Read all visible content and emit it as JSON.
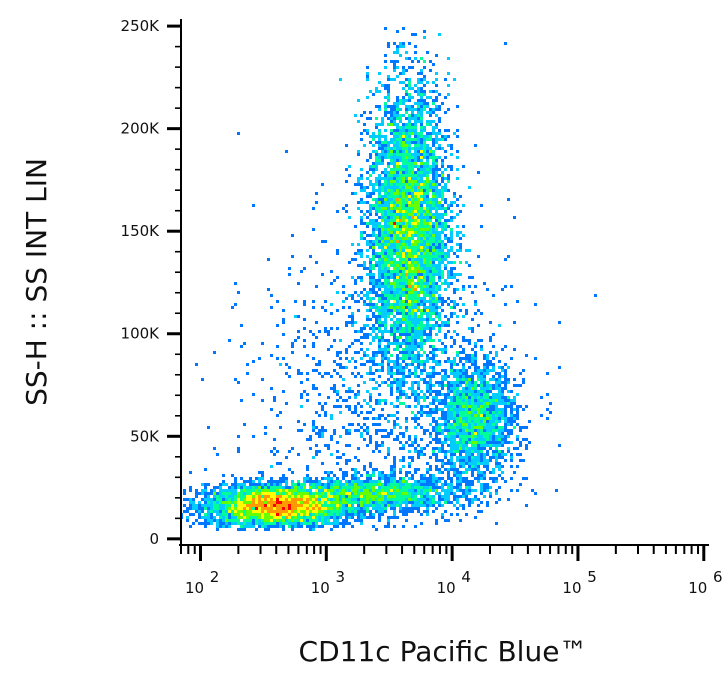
{
  "chart_data": {
    "type": "scatter",
    "title": "",
    "xlabel": "CD11c Pacific Blue™",
    "ylabel": "SS-H :: SS INT LIN",
    "x_scale": "log",
    "y_scale": "linear",
    "xlim": [
      70,
      1100000
    ],
    "ylim": [
      -3000,
      252000
    ],
    "x_ticks": [
      {
        "value": 100,
        "base": "10",
        "exp": "2"
      },
      {
        "value": 1000,
        "base": "10",
        "exp": "3"
      },
      {
        "value": 10000,
        "base": "10",
        "exp": "4"
      },
      {
        "value": 100000,
        "base": "10",
        "exp": "5"
      },
      {
        "value": 1000000,
        "base": "10",
        "exp": "6"
      }
    ],
    "y_ticks": [
      {
        "value": 0,
        "label": "0"
      },
      {
        "value": 50000,
        "label": "50K"
      },
      {
        "value": 100000,
        "label": "100K"
      },
      {
        "value": 150000,
        "label": "150K"
      },
      {
        "value": 200000,
        "label": "200K"
      },
      {
        "value": 250000,
        "label": "250K"
      }
    ],
    "grid": false,
    "legend": "none",
    "colormap": [
      "#0000ff",
      "#0077ff",
      "#00ccff",
      "#00ff99",
      "#66ff00",
      "#ffff00",
      "#ff9900",
      "#ff0000"
    ],
    "populations": [
      {
        "x_center": 400,
        "y_center": 16000,
        "x_spread_log": 0.28,
        "y_spread": 5000,
        "weight": 0.26
      },
      {
        "x_center": 2500,
        "y_center": 22000,
        "x_spread_log": 0.35,
        "y_spread": 4000,
        "weight": 0.1
      },
      {
        "x_center": 4500,
        "y_center": 150000,
        "x_spread_log": 0.16,
        "y_spread": 35000,
        "weight": 0.44
      },
      {
        "x_center": 15000,
        "y_center": 58000,
        "x_spread_log": 0.16,
        "y_spread": 14000,
        "weight": 0.12
      },
      {
        "x_center": 3000,
        "y_center": 70000,
        "x_spread_log": 0.5,
        "y_spread": 40000,
        "weight": 0.08
      }
    ],
    "point_count": 17000
  }
}
